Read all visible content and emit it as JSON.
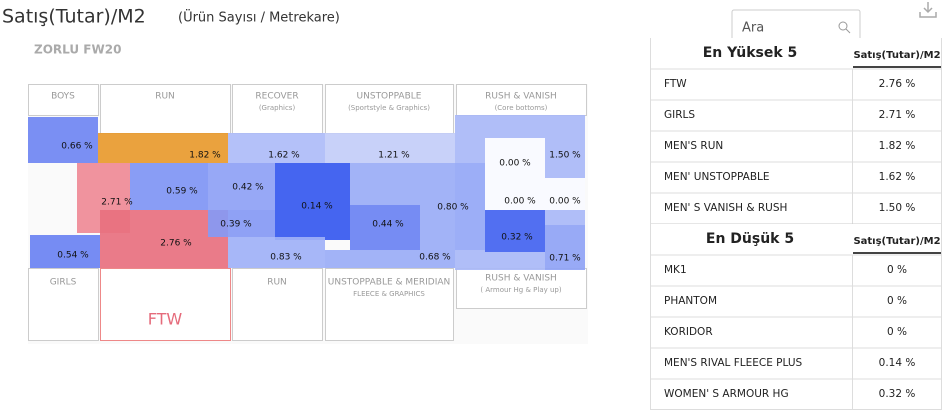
{
  "header": {
    "title": "Satış(Tutar)/M2",
    "subtitle": "(Ürün Sayısı / Metrekare)"
  },
  "search": {
    "placeholder": "Ara"
  },
  "plan": {
    "store": "ZORLU FW20",
    "zones": [
      [
        "BOYS"
      ],
      [
        "RUN"
      ],
      [
        "RECOVER",
        "(Graphics)"
      ],
      [
        "UNSTOPPABLE",
        "(Sportstyle & Graphics)"
      ],
      [
        "RUSH & VANISH",
        "(Core bottoms)"
      ],
      [
        "GIRLS"
      ],
      [
        "FTW"
      ],
      [
        "RUN"
      ],
      [
        "UNSTOPPABLE & MERIDIAN",
        "FLEECE & GRAPHICS"
      ],
      [
        "RUSH & VANISH",
        "( Armour Hg & Play up)"
      ]
    ],
    "cells": [
      "0.66 %",
      "1.82 %",
      "1.62 %",
      "1.21 %",
      "1.50 %",
      "0.71 %",
      "0.00 %",
      "0.00 %",
      "0.00 %",
      "0.32 %",
      "2.71 %",
      "2.76 %",
      "0.59 %",
      "0.42 %",
      "0.39 %",
      "0.14 %",
      "0.80 %",
      "0.44 %",
      "0.83 %",
      "0.68 %",
      "0.54 %"
    ]
  },
  "top_table": {
    "title": "En Yüksek 5",
    "column": "Satış(Tutar)/M2",
    "rows": [
      [
        "FTW",
        "2.76 %"
      ],
      [
        "GIRLS",
        "2.71 %"
      ],
      [
        "MEN'S RUN",
        "1.82 %"
      ],
      [
        "MEN' UNSTOPPABLE",
        "1.62 %"
      ],
      [
        "MEN' S VANISH & RUSH",
        "1.50 %"
      ]
    ]
  },
  "bottom_table": {
    "title": "En Düşük 5",
    "column": "Satış(Tutar)/M2",
    "rows": [
      [
        "MK1",
        "0 %"
      ],
      [
        "PHANTOM",
        "0 %"
      ],
      [
        "KORIDOR",
        "0 %"
      ],
      [
        "MEN'S RIVAL FLEECE PLUS",
        "0.14 %"
      ],
      [
        "WOMEN' S ARMOUR HG",
        "0.32 %"
      ]
    ]
  }
}
